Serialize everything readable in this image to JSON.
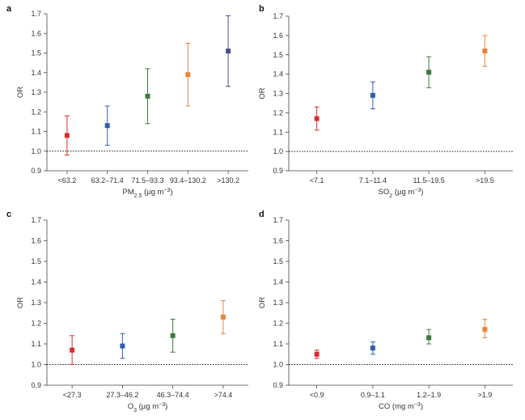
{
  "chart_data": [
    {
      "type": "scatter",
      "panel": "a",
      "ylabel": "OR",
      "xlabel": "PM",
      "xlabel_sub": "2.5",
      "xlabel_unit": " (µg m",
      "xlabel_sup": "−3",
      "xlabel_end": ")",
      "ylim": [
        0.9,
        1.7
      ],
      "yticks": [
        "0.9",
        "1.0",
        "1.1",
        "1.2",
        "1.3",
        "1.4",
        "1.5",
        "1.6",
        "1.7"
      ],
      "reference_line": 1.0,
      "categories": [
        "<63.2",
        "63.2–71.4",
        "71.5–93.3",
        "93.4–130.2",
        ">130.2"
      ],
      "values": [
        1.08,
        1.13,
        1.28,
        1.39,
        1.51
      ],
      "lower": [
        0.98,
        1.03,
        1.14,
        1.23,
        1.33
      ],
      "upper": [
        1.18,
        1.23,
        1.42,
        1.55,
        1.69
      ],
      "colors": [
        "#d62f2f",
        "#2f5fa8",
        "#3d7a3d",
        "#e8843a",
        "#4a4f8c"
      ]
    },
    {
      "type": "scatter",
      "panel": "b",
      "ylabel": "OR",
      "xlabel": "SO",
      "xlabel_sub": "2",
      "xlabel_unit": " (µg m",
      "xlabel_sup": "−3",
      "xlabel_end": ")",
      "ylim": [
        0.9,
        1.7
      ],
      "yticks": [
        "0.9",
        "1.0",
        "1.1",
        "1.2",
        "1.3",
        "1.4",
        "1.5",
        "1.6",
        "1.7"
      ],
      "reference_line": 1.0,
      "categories": [
        "<7.1",
        "7.1–11.4",
        "11.5–19.5",
        ">19.5"
      ],
      "values": [
        1.17,
        1.29,
        1.41,
        1.52
      ],
      "lower": [
        1.11,
        1.22,
        1.33,
        1.44
      ],
      "upper": [
        1.23,
        1.36,
        1.49,
        1.6
      ],
      "colors": [
        "#d62f2f",
        "#2f5fa8",
        "#3d7a3d",
        "#e8843a"
      ]
    },
    {
      "type": "scatter",
      "panel": "c",
      "ylabel": "OR",
      "xlabel": "O",
      "xlabel_sub": "3",
      "xlabel_unit": " (µg m",
      "xlabel_sup": "−3",
      "xlabel_end": ")",
      "ylim": [
        0.9,
        1.7
      ],
      "yticks": [
        "0.9",
        "1.0",
        "1.1",
        "1.2",
        "1.3",
        "1.4",
        "1.5",
        "1.6",
        "1.7"
      ],
      "reference_line": 1.0,
      "categories": [
        "<27.3",
        "27.3–46.2",
        "46.3–74.4",
        ">74.4"
      ],
      "values": [
        1.07,
        1.09,
        1.14,
        1.23
      ],
      "lower": [
        1.0,
        1.03,
        1.06,
        1.15
      ],
      "upper": [
        1.14,
        1.15,
        1.22,
        1.31
      ],
      "colors": [
        "#d62f2f",
        "#2f5fa8",
        "#3d7a3d",
        "#e8843a"
      ]
    },
    {
      "type": "scatter",
      "panel": "d",
      "ylabel": "OR",
      "xlabel": "CO",
      "xlabel_sub": "",
      "xlabel_unit": " (mg m",
      "xlabel_sup": "−3",
      "xlabel_end": ")",
      "ylim": [
        0.9,
        1.7
      ],
      "yticks": [
        "0.9",
        "1.0",
        "1.1",
        "1.2",
        "1.3",
        "1.4",
        "1.5",
        "1.6",
        "1.7"
      ],
      "reference_line": 1.0,
      "categories": [
        "<0.9",
        "0.9–1.1",
        "1.2–1.9",
        ">1.9"
      ],
      "values": [
        1.05,
        1.08,
        1.13,
        1.17
      ],
      "lower": [
        1.03,
        1.05,
        1.1,
        1.13
      ],
      "upper": [
        1.07,
        1.11,
        1.17,
        1.22
      ],
      "colors": [
        "#d62f2f",
        "#2f5fa8",
        "#3d7a3d",
        "#e8843a"
      ]
    }
  ]
}
